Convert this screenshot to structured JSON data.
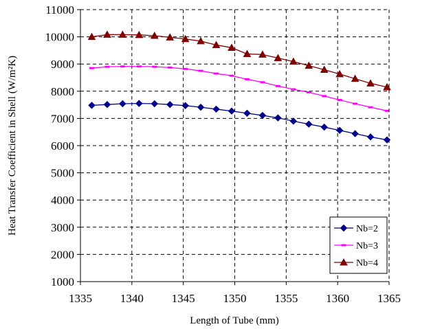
{
  "chart_data": {
    "type": "line",
    "title": "",
    "xlabel": "Length of Tube (mm)",
    "ylabel": "Heat Transfer Coefficient in Shell (W/m²K)",
    "xlim": [
      1335,
      1365
    ],
    "ylim": [
      1000,
      11000
    ],
    "xticks": [
      1335,
      1340,
      1345,
      1350,
      1355,
      1360,
      1365
    ],
    "yticks": [
      1000,
      2000,
      3000,
      4000,
      5000,
      6000,
      7000,
      8000,
      9000,
      10000,
      11000
    ],
    "grid": true,
    "legend_position": "bottom-right",
    "x": [
      1336.1,
      1337.6,
      1339.1,
      1340.7,
      1342.2,
      1343.7,
      1345.2,
      1346.7,
      1348.2,
      1349.7,
      1351.2,
      1352.7,
      1354.2,
      1355.7,
      1357.2,
      1358.7,
      1360.2,
      1361.7,
      1363.2,
      1364.8
    ],
    "series": [
      {
        "name": "Nb=2",
        "color": "#00008b",
        "marker": "diamond",
        "values": [
          7480,
          7510,
          7540,
          7550,
          7540,
          7510,
          7470,
          7410,
          7340,
          7270,
          7190,
          7110,
          7020,
          6900,
          6790,
          6680,
          6560,
          6440,
          6320,
          6210
        ]
      },
      {
        "name": "Nb=3",
        "color": "#ff00ff",
        "marker": "dash",
        "values": [
          8850,
          8900,
          8910,
          8910,
          8900,
          8870,
          8820,
          8750,
          8650,
          8570,
          8440,
          8330,
          8190,
          8070,
          7960,
          7820,
          7680,
          7540,
          7410,
          7280
        ]
      },
      {
        "name": "Nb=4",
        "color": "#800000",
        "marker": "triangle",
        "values": [
          10000,
          10080,
          10080,
          10070,
          10040,
          9980,
          9920,
          9840,
          9700,
          9600,
          9370,
          9350,
          9220,
          9090,
          8940,
          8790,
          8630,
          8460,
          8290,
          8150
        ]
      }
    ]
  }
}
